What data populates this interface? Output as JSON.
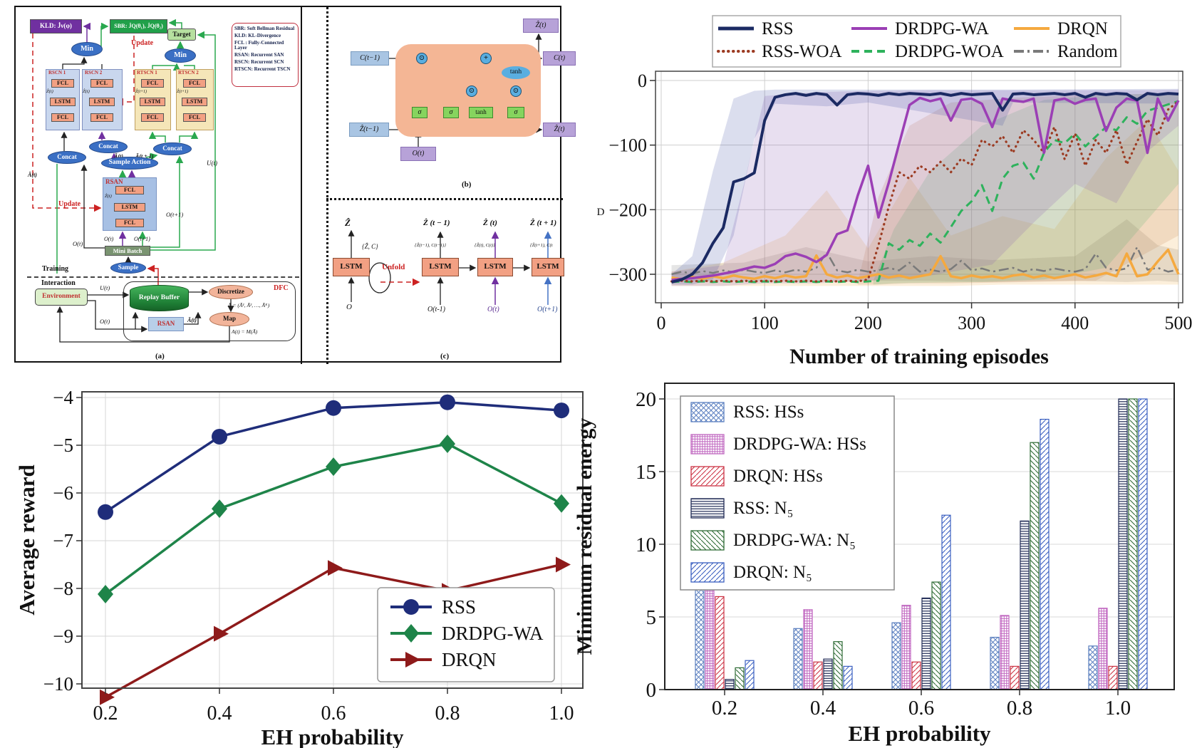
{
  "panel_a": {
    "caption": "(a)",
    "kld": "KLD: J̇ν(φ)",
    "sbr": "SBR: J̇Q(θ₁), J̇Q(θ₂)",
    "update": "Update",
    "min": "Min",
    "target": "Target",
    "rscn1": "RSCN 1",
    "rscn2": "RSCN 2",
    "rtscn1": "RTSCN 1",
    "rtscn2": "RTSCN 2",
    "fcl": "FCL",
    "lstm": "LSTM",
    "z_t": "Ẑ(t)",
    "z_t1": "Ẑ(t+1)",
    "legend_lines": [
      "SBR: Soft Bellman Residual",
      "KLD: KL-Divergence",
      "FCL : Fully-Connected Layer",
      "RSAN: Recurrent SAN",
      "RSCN: Recurrent SCN",
      "RTSCN: Recurrent TSCN"
    ],
    "concat": "Concat",
    "a_bar_t": "Ā(t)",
    "a_bar_t1": "Ā(t + 1)",
    "u_t": "U(t)",
    "sample_action": "Sample Action",
    "rsan": "RSAN",
    "o_t": "O(t)",
    "o_t1": "O(t+1)",
    "mini_batch": "Mini Batch",
    "training": "Training",
    "interaction": "Interaction",
    "sample": "Sample",
    "environment": "Environment",
    "replay_buffer": "Replay Buffer",
    "dfc": "DFC",
    "discretize": "Discretize",
    "map": "Map",
    "formula_abar": "Ā = (Ā¹, Ā², …, Āᴷ)",
    "formula_at": "A(t) = M(Ā)"
  },
  "panel_b": {
    "caption": "(b)",
    "c_tm1": "C(t−1)",
    "z_tm1": "Ẑ(t−1)",
    "o_t": "O(t)",
    "z_t_top": "Ẑ(t)",
    "c_t": "C(t)",
    "z_t_out": "Ẑ(t)",
    "sigma": "σ",
    "tanh": "tanh",
    "odot": "⊙",
    "oplus": "+"
  },
  "panel_c": {
    "caption": "(c)",
    "z_hat": "Ẑ",
    "zc_pair": "{Ẑ, C}",
    "lstm": "LSTM",
    "unfold": "Unfold",
    "o": "O",
    "z_tm1": "Ẑ (t − 1)",
    "z_t": "Ẑ (t)",
    "z_t1": "Ẑ (t + 1)",
    "pair_tm1": "{Ẑ(t−1), C(t−1)}",
    "pair_t": "{Ẑ(t), C(t)}",
    "pair_t1": "{Ẑ(t+1), C(t",
    "o_tm1": "O(t-1)",
    "o_t": "O(t)",
    "o_t1": "O(t+1)"
  },
  "chart_data": [
    {
      "id": "training-curves",
      "type": "line",
      "xlabel": "Number of training episodes",
      "ylabel_fragment": "D",
      "xlim": [
        0,
        510
      ],
      "ylim": [
        -345,
        15
      ],
      "xticks": [
        0,
        100,
        200,
        300,
        400,
        500
      ],
      "yticks": [
        0,
        -100,
        -200,
        -300
      ],
      "grid": true,
      "legend_position": "top",
      "legend_rows": [
        [
          "RSS",
          "DRDPG-WA",
          "DRQN"
        ],
        [
          "RSS-WOA",
          "DRDPG-WOA",
          "Random"
        ]
      ],
      "x_start": 10,
      "x_step": 10,
      "series": [
        {
          "name": "Random",
          "color": "#7a7a7a",
          "style": "dashdot",
          "width": 2.5,
          "values": [
            -300,
            -296,
            -299,
            -295,
            -298,
            -294,
            -297,
            -293,
            -296,
            -298,
            -294,
            -297,
            -293,
            -296,
            -290,
            -266,
            -294,
            -297,
            -293,
            -296,
            -294,
            -290,
            -294,
            -282,
            -296,
            -293,
            -296,
            -292,
            -279,
            -294,
            -291,
            -296,
            -293,
            -290,
            -296,
            -292,
            -295,
            -291,
            -294,
            -296,
            -292,
            -268,
            -290,
            -294,
            -291,
            -258,
            -293,
            -290,
            -296,
            -293
          ]
        },
        {
          "name": "DRQN",
          "color": "#f5a93f",
          "style": "solid",
          "width": 3.5,
          "values": [
            -305,
            -308,
            -304,
            -307,
            -303,
            -306,
            -302,
            -305,
            -307,
            -303,
            -306,
            -302,
            -305,
            -303,
            -271,
            -300,
            -305,
            -302,
            -306,
            -303,
            -300,
            -305,
            -302,
            -306,
            -303,
            -300,
            -272,
            -303,
            -306,
            -302,
            -305,
            -303,
            -306,
            -302,
            -300,
            -305,
            -302,
            -306,
            -303,
            -300,
            -305,
            -302,
            -298,
            -303,
            -268,
            -303,
            -300,
            -280,
            -262,
            -300
          ]
        },
        {
          "name": "DRDPG-WOA",
          "color": "#2eb25c",
          "style": "dashed",
          "width": 3,
          "values": [
            -312,
            -311,
            -312,
            -311,
            -312,
            -311,
            -312,
            -311,
            -312,
            -311,
            -312,
            -311,
            -312,
            -311,
            -312,
            -311,
            -312,
            -311,
            -312,
            -311,
            -310,
            -252,
            -262,
            -247,
            -256,
            -237,
            -251,
            -227,
            -202,
            -187,
            -162,
            -202,
            -152,
            -132,
            -127,
            -152,
            -112,
            -92,
            -97,
            -82,
            -102,
            -87,
            -72,
            -77,
            -57,
            -67,
            -47,
            -42,
            -37,
            -32
          ]
        },
        {
          "name": "RSS-WOA",
          "color": "#9c3b22",
          "style": "dotted",
          "width": 3.2,
          "values": [
            -311,
            -310,
            -311,
            -310,
            -311,
            -310,
            -311,
            -310,
            -311,
            -310,
            -311,
            -310,
            -311,
            -310,
            -311,
            -310,
            -311,
            -310,
            -311,
            -308,
            -255,
            -195,
            -142,
            -152,
            -132,
            -142,
            -126,
            -142,
            -121,
            -131,
            -92,
            -102,
            -86,
            -112,
            -77,
            -92,
            -112,
            -72,
            -122,
            -82,
            -132,
            -92,
            -112,
            -77,
            -130,
            -95,
            -60,
            -85,
            -45,
            -32
          ]
        },
        {
          "name": "DRDPG-WA",
          "color": "#9b3fb5",
          "style": "solid",
          "width": 3.5,
          "values": [
            -309,
            -307,
            -306,
            -304,
            -302,
            -299,
            -296,
            -292,
            -288,
            -290,
            -284,
            -272,
            -268,
            -273,
            -281,
            -270,
            -238,
            -232,
            -178,
            -132,
            -212,
            -158,
            -98,
            -38,
            -27,
            -32,
            -28,
            -62,
            -30,
            -28,
            -36,
            -72,
            -28,
            -31,
            -33,
            -28,
            -112,
            -31,
            -28,
            -36,
            -30,
            -28,
            -78,
            -42,
            -28,
            -31,
            -112,
            -28,
            -62,
            -31
          ]
        },
        {
          "name": "RSS",
          "color": "#1b2a63",
          "style": "solid",
          "width": 4,
          "values": [
            -312,
            -308,
            -300,
            -282,
            -252,
            -228,
            -157,
            -152,
            -143,
            -62,
            -26,
            -22,
            -20,
            -23,
            -20,
            -22,
            -38,
            -22,
            -20,
            -21,
            -23,
            -20,
            -22,
            -20,
            -21,
            -22,
            -20,
            -23,
            -20,
            -22,
            -21,
            -20,
            -46,
            -21,
            -20,
            -22,
            -21,
            -20,
            -22,
            -20,
            -26,
            -20,
            -22,
            -20,
            -21,
            -30,
            -20,
            -22,
            -20,
            -21
          ]
        }
      ],
      "bands": [
        {
          "name": "Random",
          "color": "#888888",
          "opacity": 0.22,
          "points": [
            [
              10,
              -312,
              -286
            ],
            [
              80,
              -310,
              -282
            ],
            [
              140,
              -312,
              -258
            ],
            [
              200,
              -310,
              -280
            ],
            [
              260,
              -310,
              -272
            ],
            [
              320,
              -312,
              -278
            ],
            [
              400,
              -310,
              -272
            ],
            [
              450,
              -312,
              -215
            ],
            [
              480,
              -310,
              -255
            ],
            [
              500,
              -312,
              -262
            ]
          ]
        },
        {
          "name": "DRQN",
          "color": "#f0a73a",
          "opacity": 0.18,
          "points": [
            [
              10,
              -318,
              -296
            ],
            [
              60,
              -318,
              -282
            ],
            [
              120,
              -318,
              -240
            ],
            [
              160,
              -318,
              -170
            ],
            [
              200,
              -318,
              -260
            ],
            [
              240,
              -318,
              -150
            ],
            [
              280,
              -318,
              -240
            ],
            [
              330,
              -316,
              -210
            ],
            [
              380,
              -316,
              -230
            ],
            [
              430,
              -316,
              -120
            ],
            [
              470,
              -316,
              -60
            ],
            [
              500,
              -316,
              -140
            ]
          ]
        },
        {
          "name": "RSS-WOA",
          "color": "#c07a4a",
          "opacity": 0.18,
          "points": [
            [
              190,
              -316,
              -312
            ],
            [
              210,
              -316,
              -180
            ],
            [
              240,
              -314,
              -70
            ],
            [
              280,
              -314,
              -34
            ],
            [
              350,
              -312,
              -26
            ],
            [
              420,
              -310,
              -22
            ],
            [
              500,
              -240,
              -20
            ]
          ]
        },
        {
          "name": "DRDPG-WOA",
          "color": "#3aa85c",
          "opacity": 0.16,
          "points": [
            [
              205,
              -316,
              -310
            ],
            [
              225,
              -314,
              -230
            ],
            [
              260,
              -313,
              -140
            ],
            [
              310,
              -312,
              -70
            ],
            [
              370,
              -308,
              -30
            ],
            [
              430,
              -290,
              -22
            ],
            [
              500,
              -160,
              -20
            ]
          ]
        },
        {
          "name": "DRDPG-WA",
          "color": "#8a5fb5",
          "opacity": 0.2,
          "points": [
            [
              10,
              -318,
              -296
            ],
            [
              60,
              -318,
              -286
            ],
            [
              80,
              -316,
              -160
            ],
            [
              100,
              -314,
              -24
            ],
            [
              150,
              -314,
              -18
            ],
            [
              200,
              -310,
              -16
            ],
            [
              260,
              -302,
              -15
            ],
            [
              320,
              -285,
              -15
            ],
            [
              360,
              -220,
              -15
            ],
            [
              400,
              -160,
              -15
            ],
            [
              440,
              -190,
              -15
            ],
            [
              470,
              -110,
              -15
            ],
            [
              500,
              -70,
              -14
            ]
          ]
        },
        {
          "name": "RSS",
          "color": "#3a4a9e",
          "opacity": 0.18,
          "points": [
            [
              10,
              -316,
              -300
            ],
            [
              30,
              -316,
              -272
            ],
            [
              50,
              -308,
              -140
            ],
            [
              70,
              -240,
              -28
            ],
            [
              90,
              -90,
              -16
            ],
            [
              110,
              -36,
              -14
            ],
            [
              160,
              -40,
              -14
            ],
            [
              200,
              -34,
              -14
            ],
            [
              330,
              -70,
              -14
            ],
            [
              340,
              -34,
              -14
            ],
            [
              500,
              -36,
              -13
            ]
          ]
        }
      ]
    },
    {
      "id": "average-reward",
      "type": "line",
      "xlabel": "EH probability",
      "ylabel": "Average reward",
      "x": [
        0.2,
        0.4,
        0.6,
        0.8,
        1.0
      ],
      "xticks": [
        0.2,
        0.4,
        0.6,
        0.8,
        1.0
      ],
      "yticks": [
        -4,
        -5,
        -6,
        -7,
        -8,
        -9,
        -10
      ],
      "grid": true,
      "legend_position": "lower right",
      "series": [
        {
          "name": "RSS",
          "color": "#1f2d7a",
          "marker": "circle",
          "values": [
            -6.4,
            -4.82,
            -4.22,
            -4.1,
            -4.27
          ]
        },
        {
          "name": "DRDPG-WA",
          "color": "#1e8449",
          "marker": "diamond",
          "values": [
            -8.12,
            -6.33,
            -5.45,
            -4.97,
            -6.22
          ]
        },
        {
          "name": "DRQN",
          "color": "#8e1a1a",
          "marker": "triangle-right",
          "values": [
            -10.28,
            -8.95,
            -7.57,
            -8.05,
            -7.5
          ]
        }
      ]
    },
    {
      "id": "residual-energy",
      "type": "bar",
      "xlabel": "EH probability",
      "ylabel": "Minimum residual energy",
      "categories": [
        0.2,
        0.4,
        0.6,
        0.8,
        1.0
      ],
      "yticks": [
        0,
        5,
        10,
        15,
        20
      ],
      "ylim": [
        0,
        20
      ],
      "grid": true,
      "legend_position": "upper left",
      "series": [
        {
          "name": "RSS: HSs",
          "color": "#5b7fbf",
          "hatch": "cross",
          "values": [
            7.7,
            4.2,
            4.6,
            3.6,
            3.0
          ]
        },
        {
          "name": "DRDPG-WA: HSs",
          "color": "#c066c0",
          "hatch": "grid",
          "values": [
            7.2,
            5.5,
            5.8,
            5.1,
            5.6
          ]
        },
        {
          "name": "DRQN: HSs",
          "color": "#cc3344",
          "hatch": "diag",
          "values": [
            6.4,
            1.9,
            1.9,
            1.6,
            1.6
          ]
        },
        {
          "name": "RSS: N₅",
          "color": "#1f2a55",
          "hatch": "horiz",
          "values": [
            0.7,
            2.1,
            6.3,
            11.6,
            20
          ]
        },
        {
          "name": "DRDPG-WA: N₅",
          "color": "#2e6b35",
          "hatch": "backdiag",
          "values": [
            1.5,
            3.3,
            7.4,
            17.0,
            20
          ]
        },
        {
          "name": "DRQN: N₅",
          "color": "#3a5fc0",
          "hatch": "diag",
          "values": [
            2.0,
            1.6,
            12.0,
            18.6,
            20
          ]
        }
      ]
    }
  ]
}
